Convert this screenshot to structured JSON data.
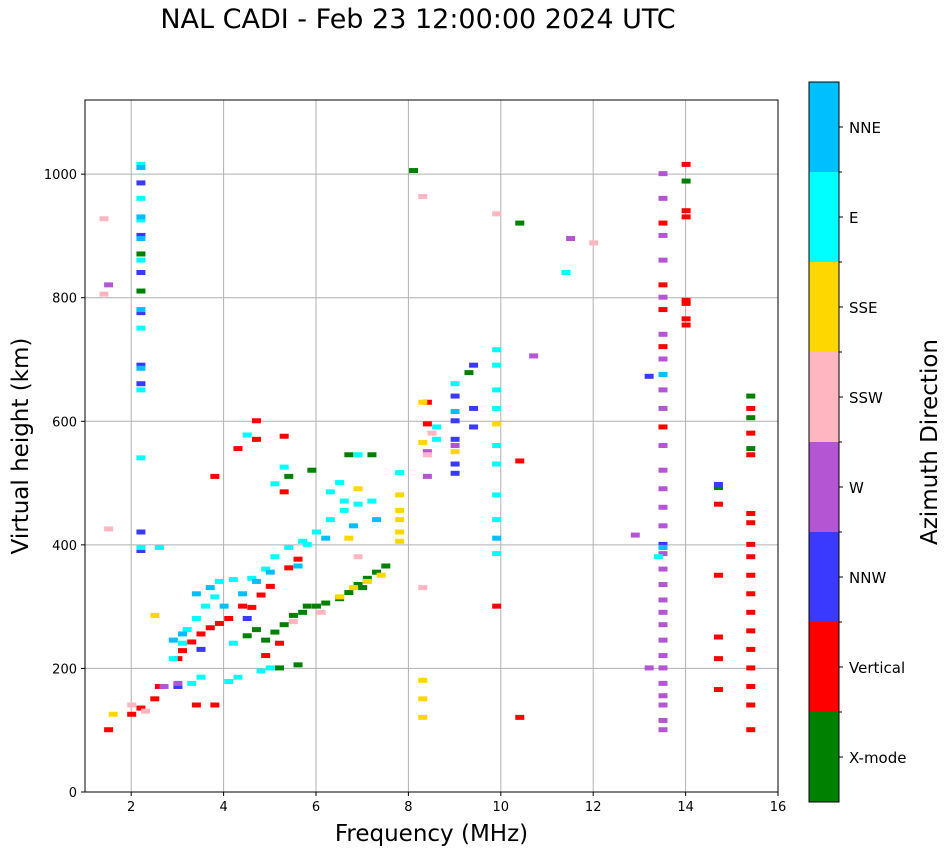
{
  "chart_data": {
    "type": "scatter",
    "title": "NAL CADI - Feb 23 12:00:00 2024 UTC",
    "xlabel": "Frequency (MHz)",
    "ylabel": "Virtual height (km)",
    "xlim": [
      1,
      16
    ],
    "ylim": [
      0,
      1120
    ],
    "xticks": [
      2,
      4,
      6,
      8,
      10,
      12,
      14,
      16
    ],
    "yticks": [
      0,
      200,
      400,
      600,
      800,
      1000
    ],
    "grid": true,
    "colorbar": {
      "label": "Azimuth Direction",
      "categories": [
        "X-mode",
        "Vertical",
        "NNW",
        "W",
        "SSW",
        "SSE",
        "E",
        "NNE"
      ],
      "colors": [
        "#008000",
        "#ff0000",
        "#3a3aff",
        "#b455d4",
        "#ffb6c1",
        "#ffd700",
        "#00ffff",
        "#00bfff"
      ]
    },
    "series": [
      {
        "name": "X-mode",
        "points": [
          [
            4.5,
            252
          ],
          [
            4.7,
            262
          ],
          [
            5.1,
            258
          ],
          [
            5.3,
            270
          ],
          [
            5.5,
            285
          ],
          [
            5.7,
            290
          ],
          [
            6.0,
            300
          ],
          [
            6.2,
            305
          ],
          [
            6.5,
            312
          ],
          [
            6.7,
            322
          ],
          [
            6.9,
            335
          ],
          [
            7.1,
            345
          ],
          [
            7.3,
            355
          ],
          [
            7.5,
            365
          ],
          [
            5.4,
            510
          ],
          [
            5.9,
            520
          ],
          [
            6.7,
            545
          ],
          [
            7.2,
            545
          ],
          [
            5.6,
            205
          ],
          [
            5.2,
            200
          ],
          [
            8.1,
            1005
          ],
          [
            2.2,
            870
          ],
          [
            2.2,
            810
          ],
          [
            10.4,
            920
          ],
          [
            14.0,
            988
          ],
          [
            9.3,
            678
          ],
          [
            15.4,
            555
          ],
          [
            15.4,
            605
          ],
          [
            15.4,
            640
          ],
          [
            14.7,
            492
          ],
          [
            4.9,
            245
          ],
          [
            5.8,
            300
          ],
          [
            7.0,
            330
          ]
        ]
      },
      {
        "name": "Vertical",
        "points": [
          [
            1.5,
            100
          ],
          [
            2.0,
            125
          ],
          [
            2.2,
            135
          ],
          [
            2.5,
            150
          ],
          [
            2.6,
            170
          ],
          [
            3.0,
            215
          ],
          [
            3.1,
            228
          ],
          [
            3.3,
            242
          ],
          [
            3.5,
            255
          ],
          [
            3.7,
            265
          ],
          [
            3.9,
            272
          ],
          [
            4.1,
            280
          ],
          [
            4.4,
            300
          ],
          [
            4.6,
            298
          ],
          [
            4.8,
            318
          ],
          [
            5.0,
            332
          ],
          [
            5.4,
            362
          ],
          [
            5.6,
            376
          ],
          [
            5.3,
            485
          ],
          [
            5.3,
            575
          ],
          [
            4.7,
            600
          ],
          [
            4.3,
            555
          ],
          [
            3.8,
            510
          ],
          [
            4.7,
            570
          ],
          [
            10.4,
            120
          ],
          [
            9.9,
            300
          ],
          [
            10.4,
            535
          ],
          [
            8.4,
            595
          ],
          [
            8.4,
            630
          ],
          [
            15.4,
            100
          ],
          [
            15.4,
            140
          ],
          [
            15.4,
            170
          ],
          [
            15.4,
            200
          ],
          [
            15.4,
            230
          ],
          [
            15.4,
            260
          ],
          [
            15.4,
            290
          ],
          [
            15.4,
            320
          ],
          [
            15.4,
            350
          ],
          [
            15.4,
            380
          ],
          [
            15.4,
            400
          ],
          [
            15.4,
            435
          ],
          [
            15.4,
            450
          ],
          [
            15.4,
            545
          ],
          [
            15.4,
            580
          ],
          [
            15.4,
            620
          ],
          [
            14.7,
            165
          ],
          [
            14.7,
            215
          ],
          [
            14.7,
            250
          ],
          [
            14.7,
            350
          ],
          [
            14.7,
            465
          ],
          [
            14.0,
            1015
          ],
          [
            14.0,
            940
          ],
          [
            14.0,
            930
          ],
          [
            14.0,
            795
          ],
          [
            14.0,
            790
          ],
          [
            14.0,
            765
          ],
          [
            14.0,
            755
          ],
          [
            13.5,
            590
          ],
          [
            13.5,
            720
          ],
          [
            13.5,
            780
          ],
          [
            13.5,
            820
          ],
          [
            13.5,
            920
          ],
          [
            3.4,
            140
          ],
          [
            3.8,
            140
          ],
          [
            4.9,
            220
          ],
          [
            5.2,
            240
          ]
        ]
      },
      {
        "name": "NNW",
        "points": [
          [
            2.2,
            420
          ],
          [
            2.2,
            390
          ],
          [
            2.2,
            660
          ],
          [
            2.2,
            690
          ],
          [
            2.2,
            775
          ],
          [
            2.2,
            840
          ],
          [
            2.2,
            900
          ],
          [
            2.2,
            985
          ],
          [
            9.0,
            515
          ],
          [
            9.0,
            530
          ],
          [
            9.0,
            570
          ],
          [
            9.0,
            600
          ],
          [
            9.0,
            640
          ],
          [
            9.4,
            590
          ],
          [
            9.4,
            620
          ],
          [
            9.4,
            690
          ],
          [
            13.5,
            400
          ],
          [
            13.5,
            675
          ],
          [
            13.2,
            672
          ],
          [
            14.7,
            497
          ],
          [
            3.0,
            170
          ],
          [
            3.5,
            230
          ],
          [
            4.5,
            280
          ]
        ]
      },
      {
        "name": "W",
        "points": [
          [
            1.5,
            820
          ],
          [
            10.7,
            705
          ],
          [
            11.5,
            895
          ],
          [
            12.9,
            415
          ],
          [
            13.2,
            200
          ],
          [
            13.5,
            100
          ],
          [
            13.5,
            115
          ],
          [
            13.5,
            140
          ],
          [
            13.5,
            155
          ],
          [
            13.5,
            175
          ],
          [
            13.5,
            200
          ],
          [
            13.5,
            220
          ],
          [
            13.5,
            245
          ],
          [
            13.5,
            270
          ],
          [
            13.5,
            290
          ],
          [
            13.5,
            310
          ],
          [
            13.5,
            335
          ],
          [
            13.5,
            360
          ],
          [
            13.5,
            385
          ],
          [
            13.5,
            430
          ],
          [
            13.5,
            460
          ],
          [
            13.5,
            490
          ],
          [
            13.5,
            520
          ],
          [
            13.5,
            560
          ],
          [
            13.5,
            620
          ],
          [
            13.5,
            650
          ],
          [
            13.5,
            700
          ],
          [
            13.5,
            740
          ],
          [
            13.5,
            800
          ],
          [
            13.5,
            860
          ],
          [
            13.5,
            900
          ],
          [
            13.5,
            960
          ],
          [
            13.5,
            1000
          ],
          [
            8.4,
            510
          ],
          [
            8.4,
            550
          ],
          [
            9.0,
            560
          ],
          [
            2.7,
            170
          ],
          [
            3.0,
            175
          ]
        ]
      },
      {
        "name": "SSW",
        "points": [
          [
            1.4,
            805
          ],
          [
            1.4,
            927
          ],
          [
            1.5,
            425
          ],
          [
            8.3,
            963
          ],
          [
            8.3,
            330
          ],
          [
            8.5,
            580
          ],
          [
            8.4,
            545
          ],
          [
            12.0,
            888
          ],
          [
            9.9,
            935
          ],
          [
            5.5,
            275
          ],
          [
            6.1,
            290
          ],
          [
            6.9,
            380
          ],
          [
            2.3,
            130
          ],
          [
            2.0,
            140
          ]
        ]
      },
      {
        "name": "SSE",
        "points": [
          [
            8.3,
            120
          ],
          [
            8.3,
            150
          ],
          [
            8.3,
            180
          ],
          [
            8.3,
            565
          ],
          [
            8.3,
            630
          ],
          [
            7.8,
            405
          ],
          [
            7.8,
            420
          ],
          [
            7.8,
            440
          ],
          [
            7.8,
            455
          ],
          [
            7.8,
            480
          ],
          [
            9.0,
            550
          ],
          [
            9.9,
            595
          ],
          [
            6.5,
            315
          ],
          [
            6.8,
            330
          ],
          [
            7.1,
            340
          ],
          [
            7.4,
            350
          ],
          [
            6.9,
            490
          ],
          [
            6.7,
            410
          ],
          [
            2.5,
            285
          ],
          [
            1.6,
            125
          ]
        ]
      },
      {
        "name": "E",
        "points": [
          [
            3.3,
            175
          ],
          [
            3.5,
            185
          ],
          [
            4.1,
            178
          ],
          [
            4.3,
            185
          ],
          [
            4.8,
            195
          ],
          [
            5.0,
            200
          ],
          [
            2.9,
            215
          ],
          [
            3.1,
            240
          ],
          [
            3.2,
            262
          ],
          [
            3.4,
            280
          ],
          [
            3.6,
            300
          ],
          [
            3.8,
            315
          ],
          [
            3.9,
            340
          ],
          [
            4.2,
            343
          ],
          [
            4.6,
            345
          ],
          [
            4.9,
            360
          ],
          [
            5.1,
            380
          ],
          [
            5.4,
            395
          ],
          [
            5.7,
            405
          ],
          [
            6.0,
            420
          ],
          [
            6.3,
            440
          ],
          [
            6.6,
            455
          ],
          [
            6.9,
            465
          ],
          [
            7.2,
            470
          ],
          [
            5.3,
            525
          ],
          [
            5.1,
            498
          ],
          [
            6.3,
            485
          ],
          [
            6.5,
            500
          ],
          [
            6.9,
            545
          ],
          [
            4.5,
            577
          ],
          [
            7.8,
            516
          ],
          [
            9.9,
            385
          ],
          [
            9.9,
            440
          ],
          [
            9.9,
            480
          ],
          [
            9.9,
            530
          ],
          [
            9.9,
            560
          ],
          [
            9.9,
            620
          ],
          [
            9.9,
            650
          ],
          [
            9.9,
            690
          ],
          [
            9.9,
            715
          ],
          [
            8.6,
            570
          ],
          [
            8.6,
            590
          ],
          [
            9.0,
            660
          ],
          [
            11.4,
            840
          ],
          [
            2.2,
            1015
          ],
          [
            2.2,
            960
          ],
          [
            2.2,
            925
          ],
          [
            2.2,
            860
          ],
          [
            2.2,
            750
          ],
          [
            2.2,
            650
          ],
          [
            2.2,
            540
          ],
          [
            2.2,
            395
          ],
          [
            2.6,
            395
          ],
          [
            13.4,
            380
          ],
          [
            4.2,
            240
          ],
          [
            5.8,
            400
          ],
          [
            6.6,
            470
          ]
        ]
      },
      {
        "name": "NNE",
        "points": [
          [
            2.2,
            1010
          ],
          [
            2.2,
            930
          ],
          [
            2.2,
            895
          ],
          [
            2.2,
            780
          ],
          [
            2.2,
            685
          ],
          [
            2.9,
            245
          ],
          [
            3.1,
            255
          ],
          [
            3.4,
            320
          ],
          [
            3.7,
            330
          ],
          [
            4.0,
            300
          ],
          [
            4.4,
            320
          ],
          [
            4.7,
            340
          ],
          [
            5.0,
            355
          ],
          [
            5.6,
            365
          ],
          [
            6.2,
            410
          ],
          [
            6.8,
            430
          ],
          [
            7.3,
            440
          ],
          [
            9.9,
            410
          ],
          [
            9.0,
            615
          ],
          [
            13.5,
            675
          ],
          [
            13.5,
            395
          ]
        ]
      }
    ]
  }
}
